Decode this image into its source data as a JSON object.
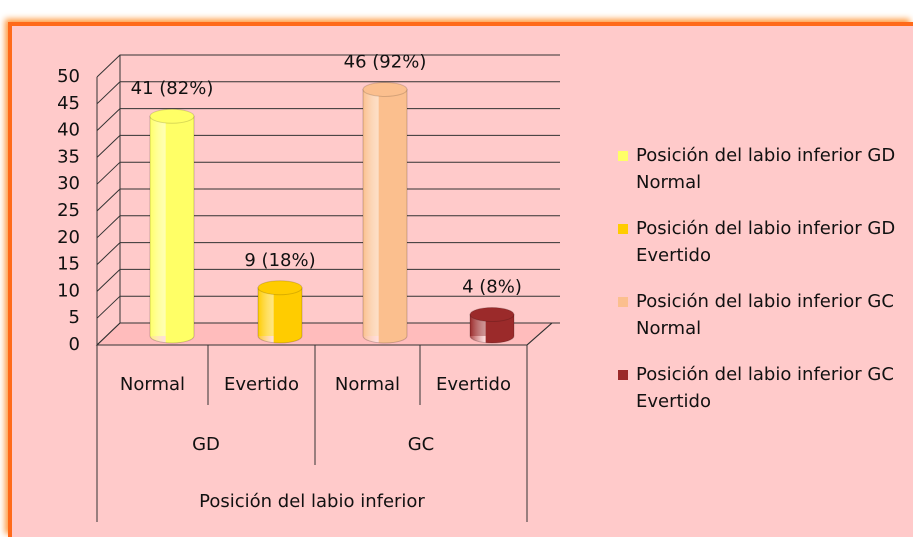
{
  "chart_data": {
    "type": "bar",
    "x_label": "Posición del labio inferior",
    "categories": [
      "Normal",
      "Evertido",
      "Normal",
      "Evertido"
    ],
    "groups": [
      "GD",
      "GC"
    ],
    "series": [
      {
        "name": "Posición del labio inferior GD Normal",
        "color": "#ffff66",
        "values": [
          41,
          null,
          null,
          null
        ],
        "value_labels": [
          "41 (82%)",
          null,
          null,
          null
        ]
      },
      {
        "name": "Posición del labio inferior GD Evertido",
        "color": "#ffcc00",
        "values": [
          null,
          9,
          null,
          null
        ],
        "value_labels": [
          null,
          "9 (18%)",
          null,
          null
        ]
      },
      {
        "name": "Posición del labio inferior GC Normal",
        "color": "#fbbf8e",
        "values": [
          null,
          null,
          46,
          null
        ],
        "value_labels": [
          null,
          null,
          "46 (92%)",
          null
        ]
      },
      {
        "name": "Posición del labio inferior GC Evertido",
        "color": "#9b2a2a",
        "values": [
          null,
          null,
          null,
          4
        ],
        "value_labels": [
          null,
          null,
          null,
          "4 (8%)"
        ]
      }
    ],
    "ylim": [
      0,
      50
    ],
    "yticks": [
      0,
      5,
      10,
      15,
      20,
      25,
      30,
      35,
      40,
      45,
      50
    ],
    "grid": true,
    "legend": "right"
  }
}
